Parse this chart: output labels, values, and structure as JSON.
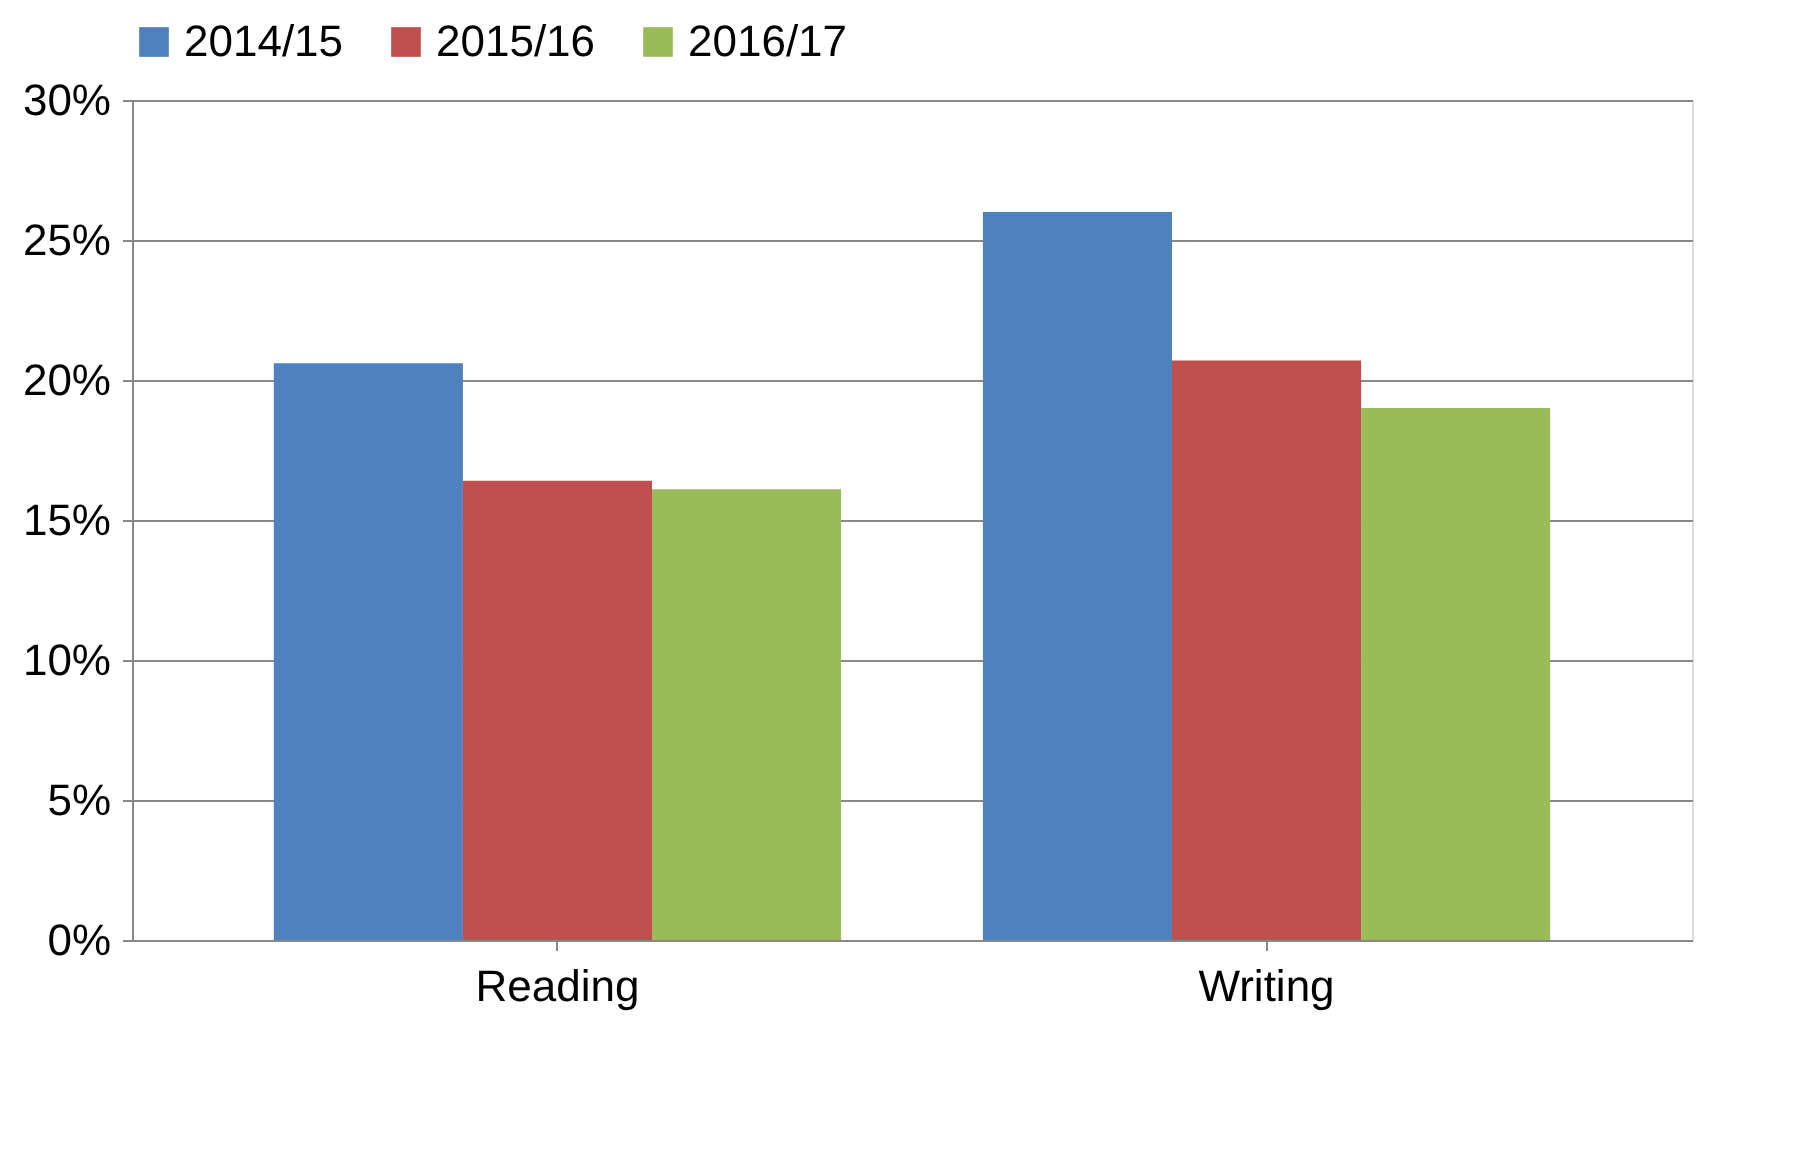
{
  "chart_data": {
    "type": "bar",
    "categories": [
      "Reading",
      "Writing"
    ],
    "series": [
      {
        "name": "2014/15",
        "color": "#4f81bd",
        "values": [
          20.6,
          26.0
        ]
      },
      {
        "name": "2015/16",
        "color": "#c0504d",
        "values": [
          16.4,
          20.7
        ]
      },
      {
        "name": "2016/17",
        "color": "#9bbb59",
        "values": [
          16.1,
          19.0
        ]
      }
    ],
    "ylim": [
      0,
      30
    ],
    "yticks": [
      {
        "value": 0,
        "label": "0%"
      },
      {
        "value": 5,
        "label": "5%"
      },
      {
        "value": 10,
        "label": "10%"
      },
      {
        "value": 15,
        "label": "15%"
      },
      {
        "value": 20,
        "label": "20%"
      },
      {
        "value": 25,
        "label": "25%"
      },
      {
        "value": 30,
        "label": "30%"
      }
    ],
    "grid": "y",
    "legend": "top"
  }
}
